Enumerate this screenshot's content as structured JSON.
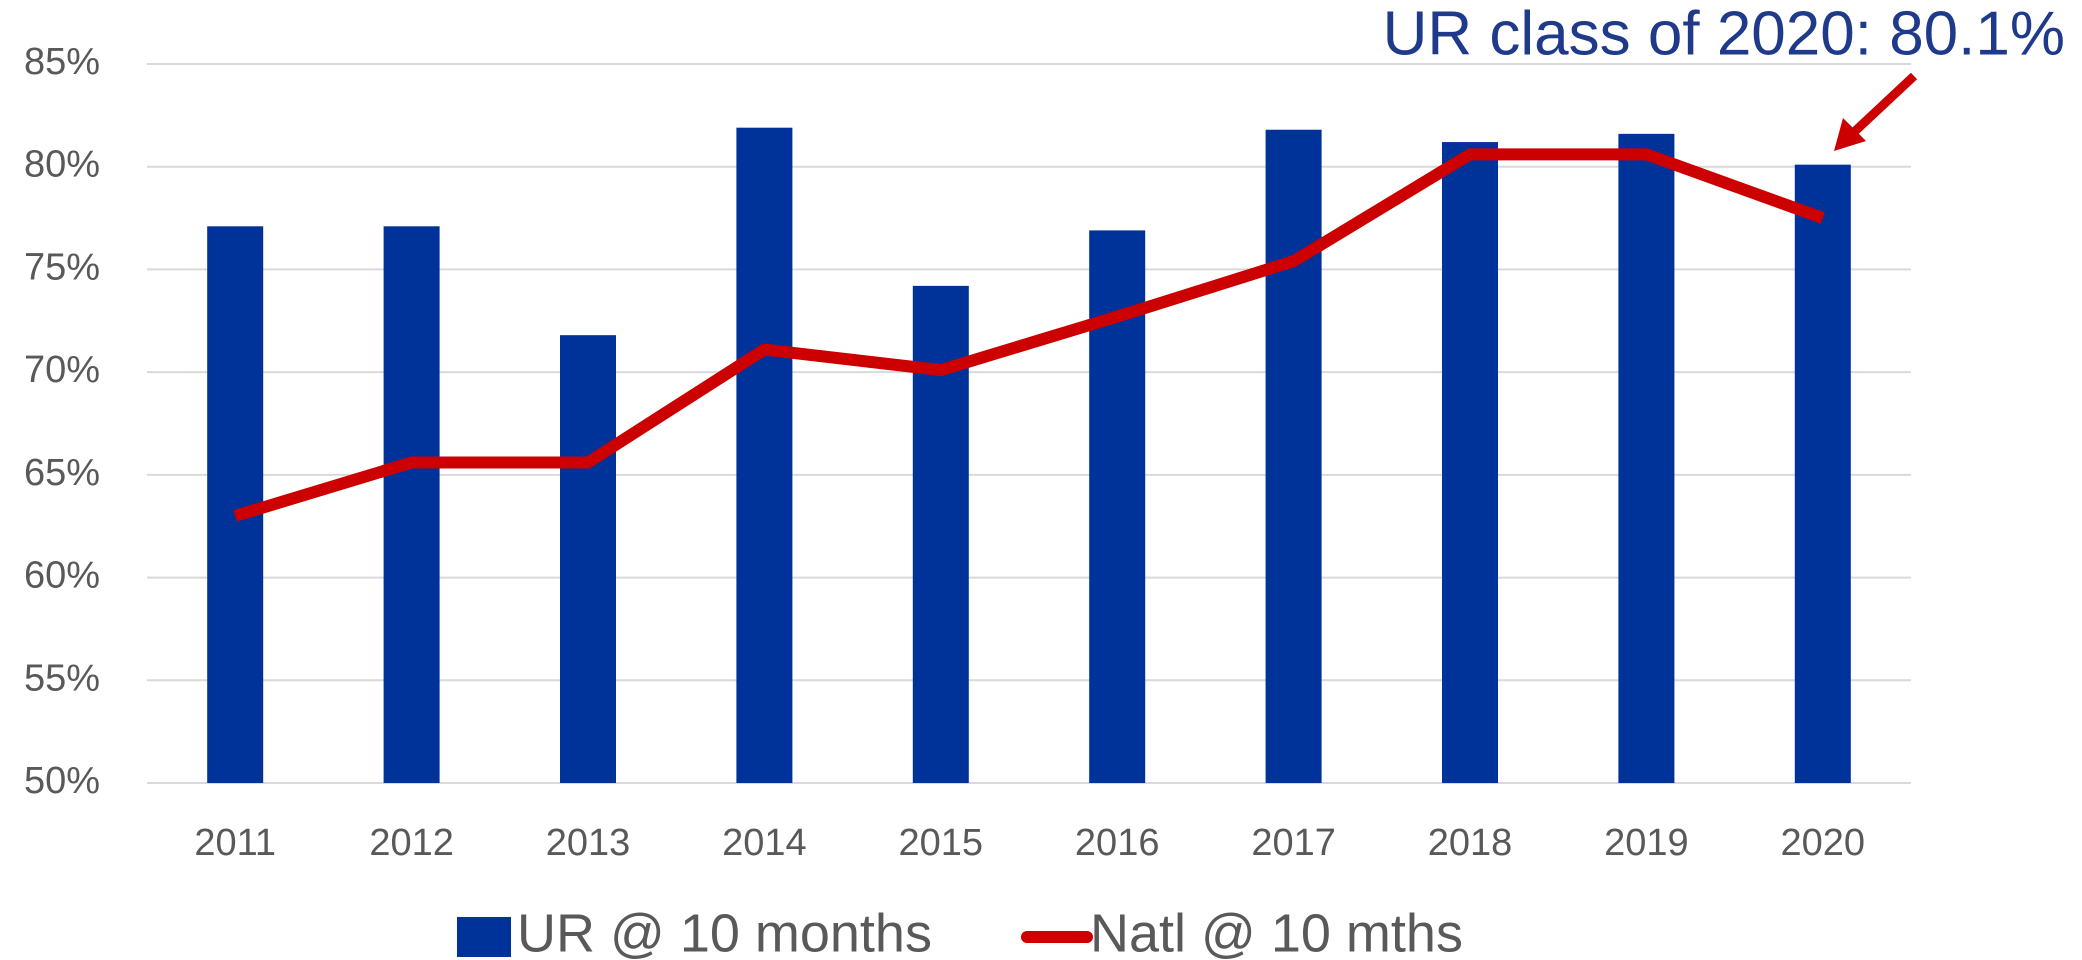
{
  "chart_data": {
    "type": "bar+line",
    "annotation": "UR class of 2020: 80.1%",
    "categories": [
      "2011",
      "2012",
      "2013",
      "2014",
      "2015",
      "2016",
      "2017",
      "2018",
      "2019",
      "2020"
    ],
    "series": [
      {
        "name": "UR @ 10 months",
        "type": "bar",
        "color": "#003399",
        "values": [
          77.1,
          77.1,
          71.8,
          81.9,
          74.2,
          76.9,
          81.8,
          81.2,
          81.6,
          80.1
        ]
      },
      {
        "name": "Natl @ 10 mths",
        "type": "line",
        "color": "#cc0000",
        "values": [
          63.0,
          65.6,
          65.6,
          71.1,
          70.1,
          72.7,
          75.4,
          80.6,
          80.6,
          77.5
        ]
      }
    ],
    "ylim": [
      50,
      85
    ],
    "yticks": [
      {
        "value": 50,
        "label": "50%"
      },
      {
        "value": 55,
        "label": "55%"
      },
      {
        "value": 60,
        "label": "60%"
      },
      {
        "value": 65,
        "label": "65%"
      },
      {
        "value": 70,
        "label": "70%"
      },
      {
        "value": 75,
        "label": "75%"
      },
      {
        "value": 80,
        "label": "80%"
      },
      {
        "value": 85,
        "label": "85%"
      }
    ],
    "grid": true,
    "legend": "bottom"
  }
}
